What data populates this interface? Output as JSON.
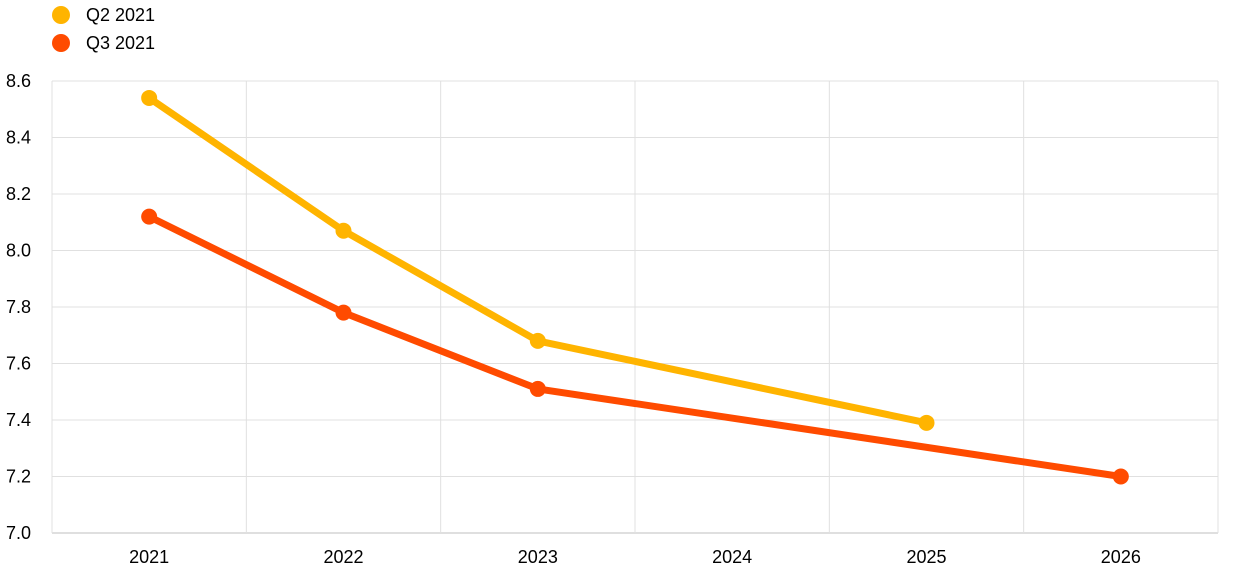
{
  "chart_data": {
    "type": "line",
    "title": "",
    "xlabel": "",
    "ylabel": "",
    "categories": [
      "2021",
      "2022",
      "2023",
      "2024",
      "2025",
      "2026"
    ],
    "ylim": [
      7.0,
      8.6
    ],
    "yticks": [
      "7.0",
      "7.2",
      "7.4",
      "7.6",
      "7.8",
      "8.0",
      "8.2",
      "8.4",
      "8.6"
    ],
    "grid": true,
    "legend_position": "top-left",
    "series": [
      {
        "name": "Q2 2021",
        "color": "#FFB400",
        "values": [
          8.54,
          8.07,
          7.68,
          null,
          7.39,
          null
        ]
      },
      {
        "name": "Q3 2021",
        "color": "#FF4B00",
        "values": [
          8.12,
          7.78,
          7.51,
          null,
          null,
          7.2
        ]
      }
    ]
  }
}
